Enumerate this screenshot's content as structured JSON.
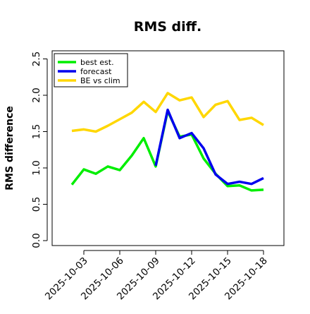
{
  "chart_data": {
    "type": "line",
    "title": "RMS diff.",
    "xlabel": "",
    "ylabel": "RMS difference",
    "ylim": [
      0,
      2.5
    ],
    "yticks": [
      "0.0",
      "0.5",
      "1.0",
      "1.5",
      "2.0",
      "2.5"
    ],
    "x": [
      "2025-10-02",
      "2025-10-03",
      "2025-10-04",
      "2025-10-05",
      "2025-10-06",
      "2025-10-07",
      "2025-10-08",
      "2025-10-09",
      "2025-10-10",
      "2025-10-11",
      "2025-10-12",
      "2025-10-13",
      "2025-10-14",
      "2025-10-15",
      "2025-10-16",
      "2025-10-17",
      "2025-10-18"
    ],
    "xtick_labels": [
      "2025-10-03",
      "2025-10-06",
      "2025-10-09",
      "2025-10-12",
      "2025-10-15",
      "2025-10-18"
    ],
    "highlighted_tick": "2025-10-09",
    "highlight_color": "#228B22",
    "legend_position": "top-left",
    "grid": false,
    "series": [
      {
        "name": "best est.",
        "color": "#00ee00",
        "values": [
          0.77,
          0.98,
          0.92,
          1.02,
          0.97,
          1.17,
          1.41,
          1.02,
          1.78,
          1.43,
          1.46,
          1.13,
          0.92,
          0.75,
          0.76,
          0.69,
          0.7
        ]
      },
      {
        "name": "forecast",
        "color": "#0000ee",
        "values": [
          null,
          null,
          null,
          null,
          null,
          null,
          null,
          1.03,
          1.8,
          1.41,
          1.48,
          1.27,
          0.91,
          0.78,
          0.81,
          0.78,
          0.86
        ]
      },
      {
        "name": "BE vs clim",
        "color": "#ffd700",
        "values": [
          1.51,
          1.53,
          1.5,
          1.58,
          1.67,
          1.76,
          1.91,
          1.77,
          2.03,
          1.93,
          1.97,
          1.7,
          1.87,
          1.92,
          1.66,
          1.69,
          1.59
        ]
      }
    ]
  }
}
